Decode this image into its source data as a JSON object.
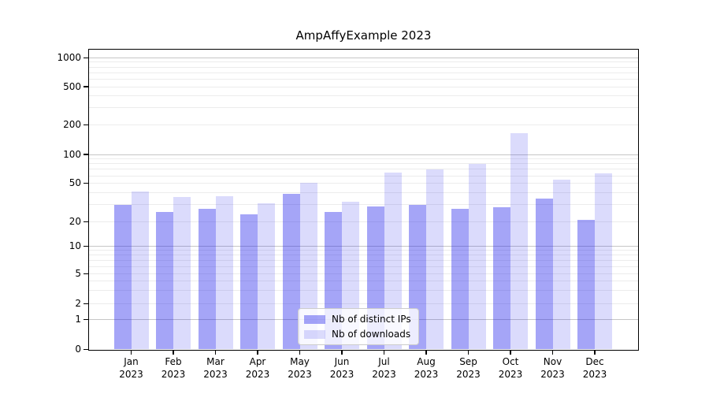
{
  "chart_data": {
    "type": "bar",
    "title": "AmpAffyExample 2023",
    "categories": [
      "Jan 2023",
      "Feb 2023",
      "Mar 2023",
      "Apr 2023",
      "May 2023",
      "Jun 2023",
      "Jul 2023",
      "Aug 2023",
      "Sep 2023",
      "Oct 2023",
      "Nov 2023",
      "Dec 2023"
    ],
    "series": [
      {
        "name": "Nb of distinct IPs",
        "color": "#a6a6f4",
        "values": [
          30,
          25,
          27,
          24,
          39,
          25,
          29,
          30,
          27,
          28,
          35,
          21
        ]
      },
      {
        "name": "Nb of downloads",
        "color": "#dcdcfa",
        "values": [
          41,
          36,
          37,
          31,
          51,
          32,
          65,
          70,
          80,
          165,
          55,
          63
        ]
      }
    ],
    "y_ticks": [
      0,
      1,
      2,
      5,
      10,
      20,
      50,
      100,
      200,
      500,
      1000
    ],
    "ylim": [
      0,
      1000
    ],
    "yscale": "symlog",
    "grid": true,
    "legend_position": "lower center",
    "xlabel": "",
    "ylabel": ""
  },
  "colors": {
    "bar_distinct_ips": "rgba(30,30,235,0.40)",
    "bar_downloads": "rgba(30,30,235,0.16)",
    "grid_minor": "#ececec",
    "grid_major": "#c6c6c6",
    "spine": "#000000",
    "legend_border": "#cccccc"
  }
}
